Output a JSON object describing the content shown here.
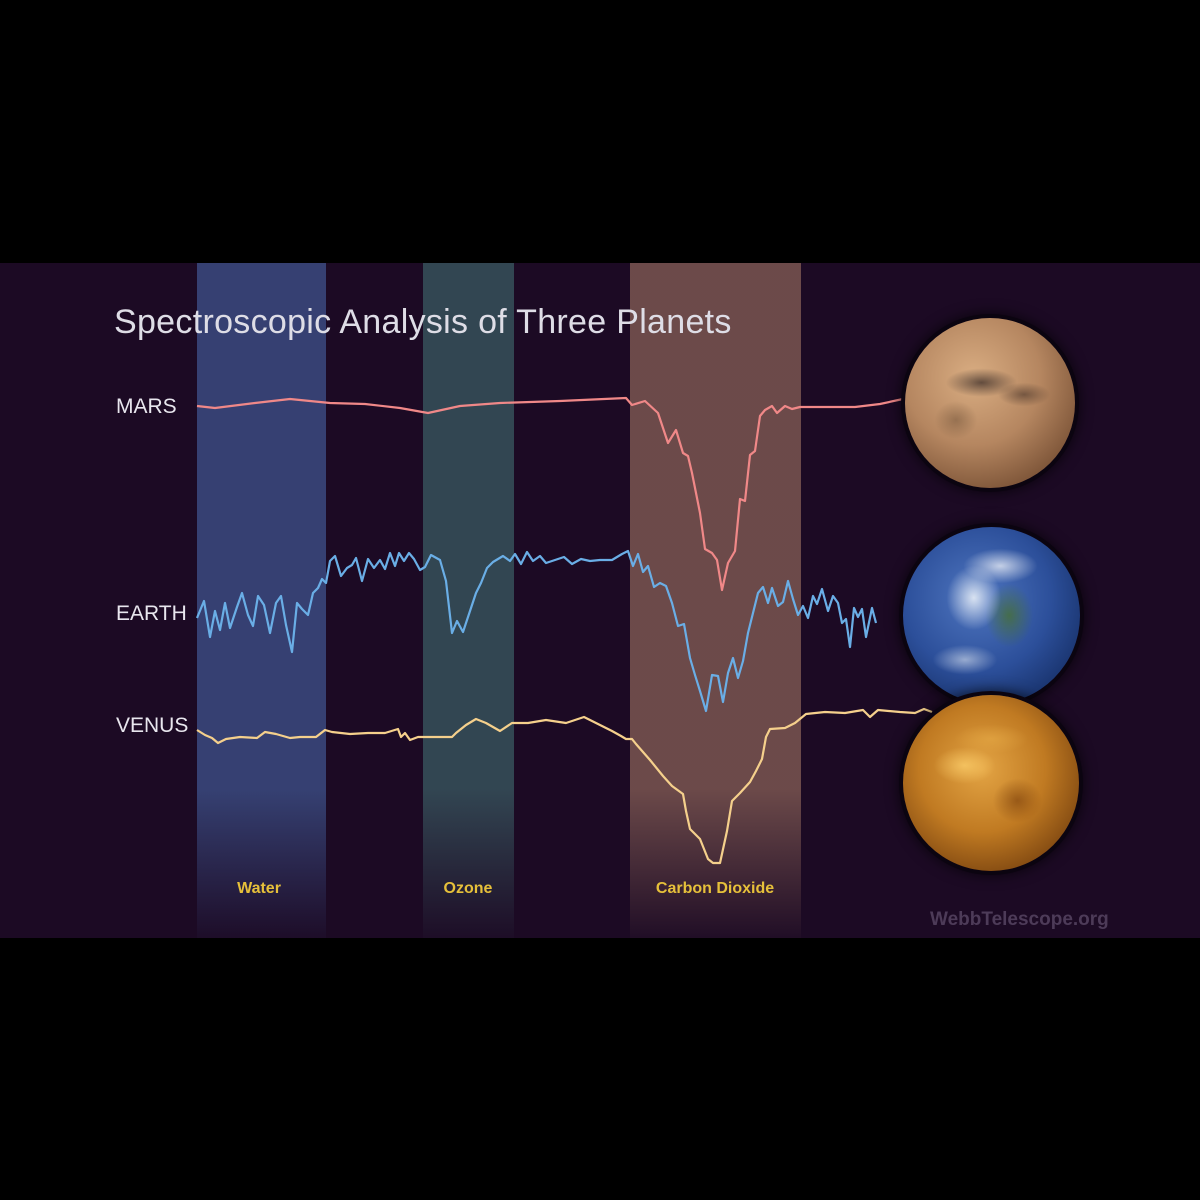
{
  "chart_data": {
    "type": "line",
    "title": "Spectroscopic Analysis of Three Planets",
    "bands": [
      {
        "label": "Water",
        "color": "#3a4a80"
      },
      {
        "label": "Ozone",
        "color": "#36505a"
      },
      {
        "label": "Carbon Dioxide",
        "color": "#7a5550"
      }
    ],
    "series": [
      {
        "name": "MARS",
        "color": "#f08888"
      },
      {
        "name": "EARTH",
        "color": "#6aaee6"
      },
      {
        "name": "VENUS",
        "color": "#f5d08c"
      }
    ],
    "credit": "WebbTelescope.org"
  },
  "colors": {
    "background": "#1c0a24",
    "band_label": "#e6c03a"
  },
  "planets": [
    "mars",
    "earth",
    "venus"
  ]
}
